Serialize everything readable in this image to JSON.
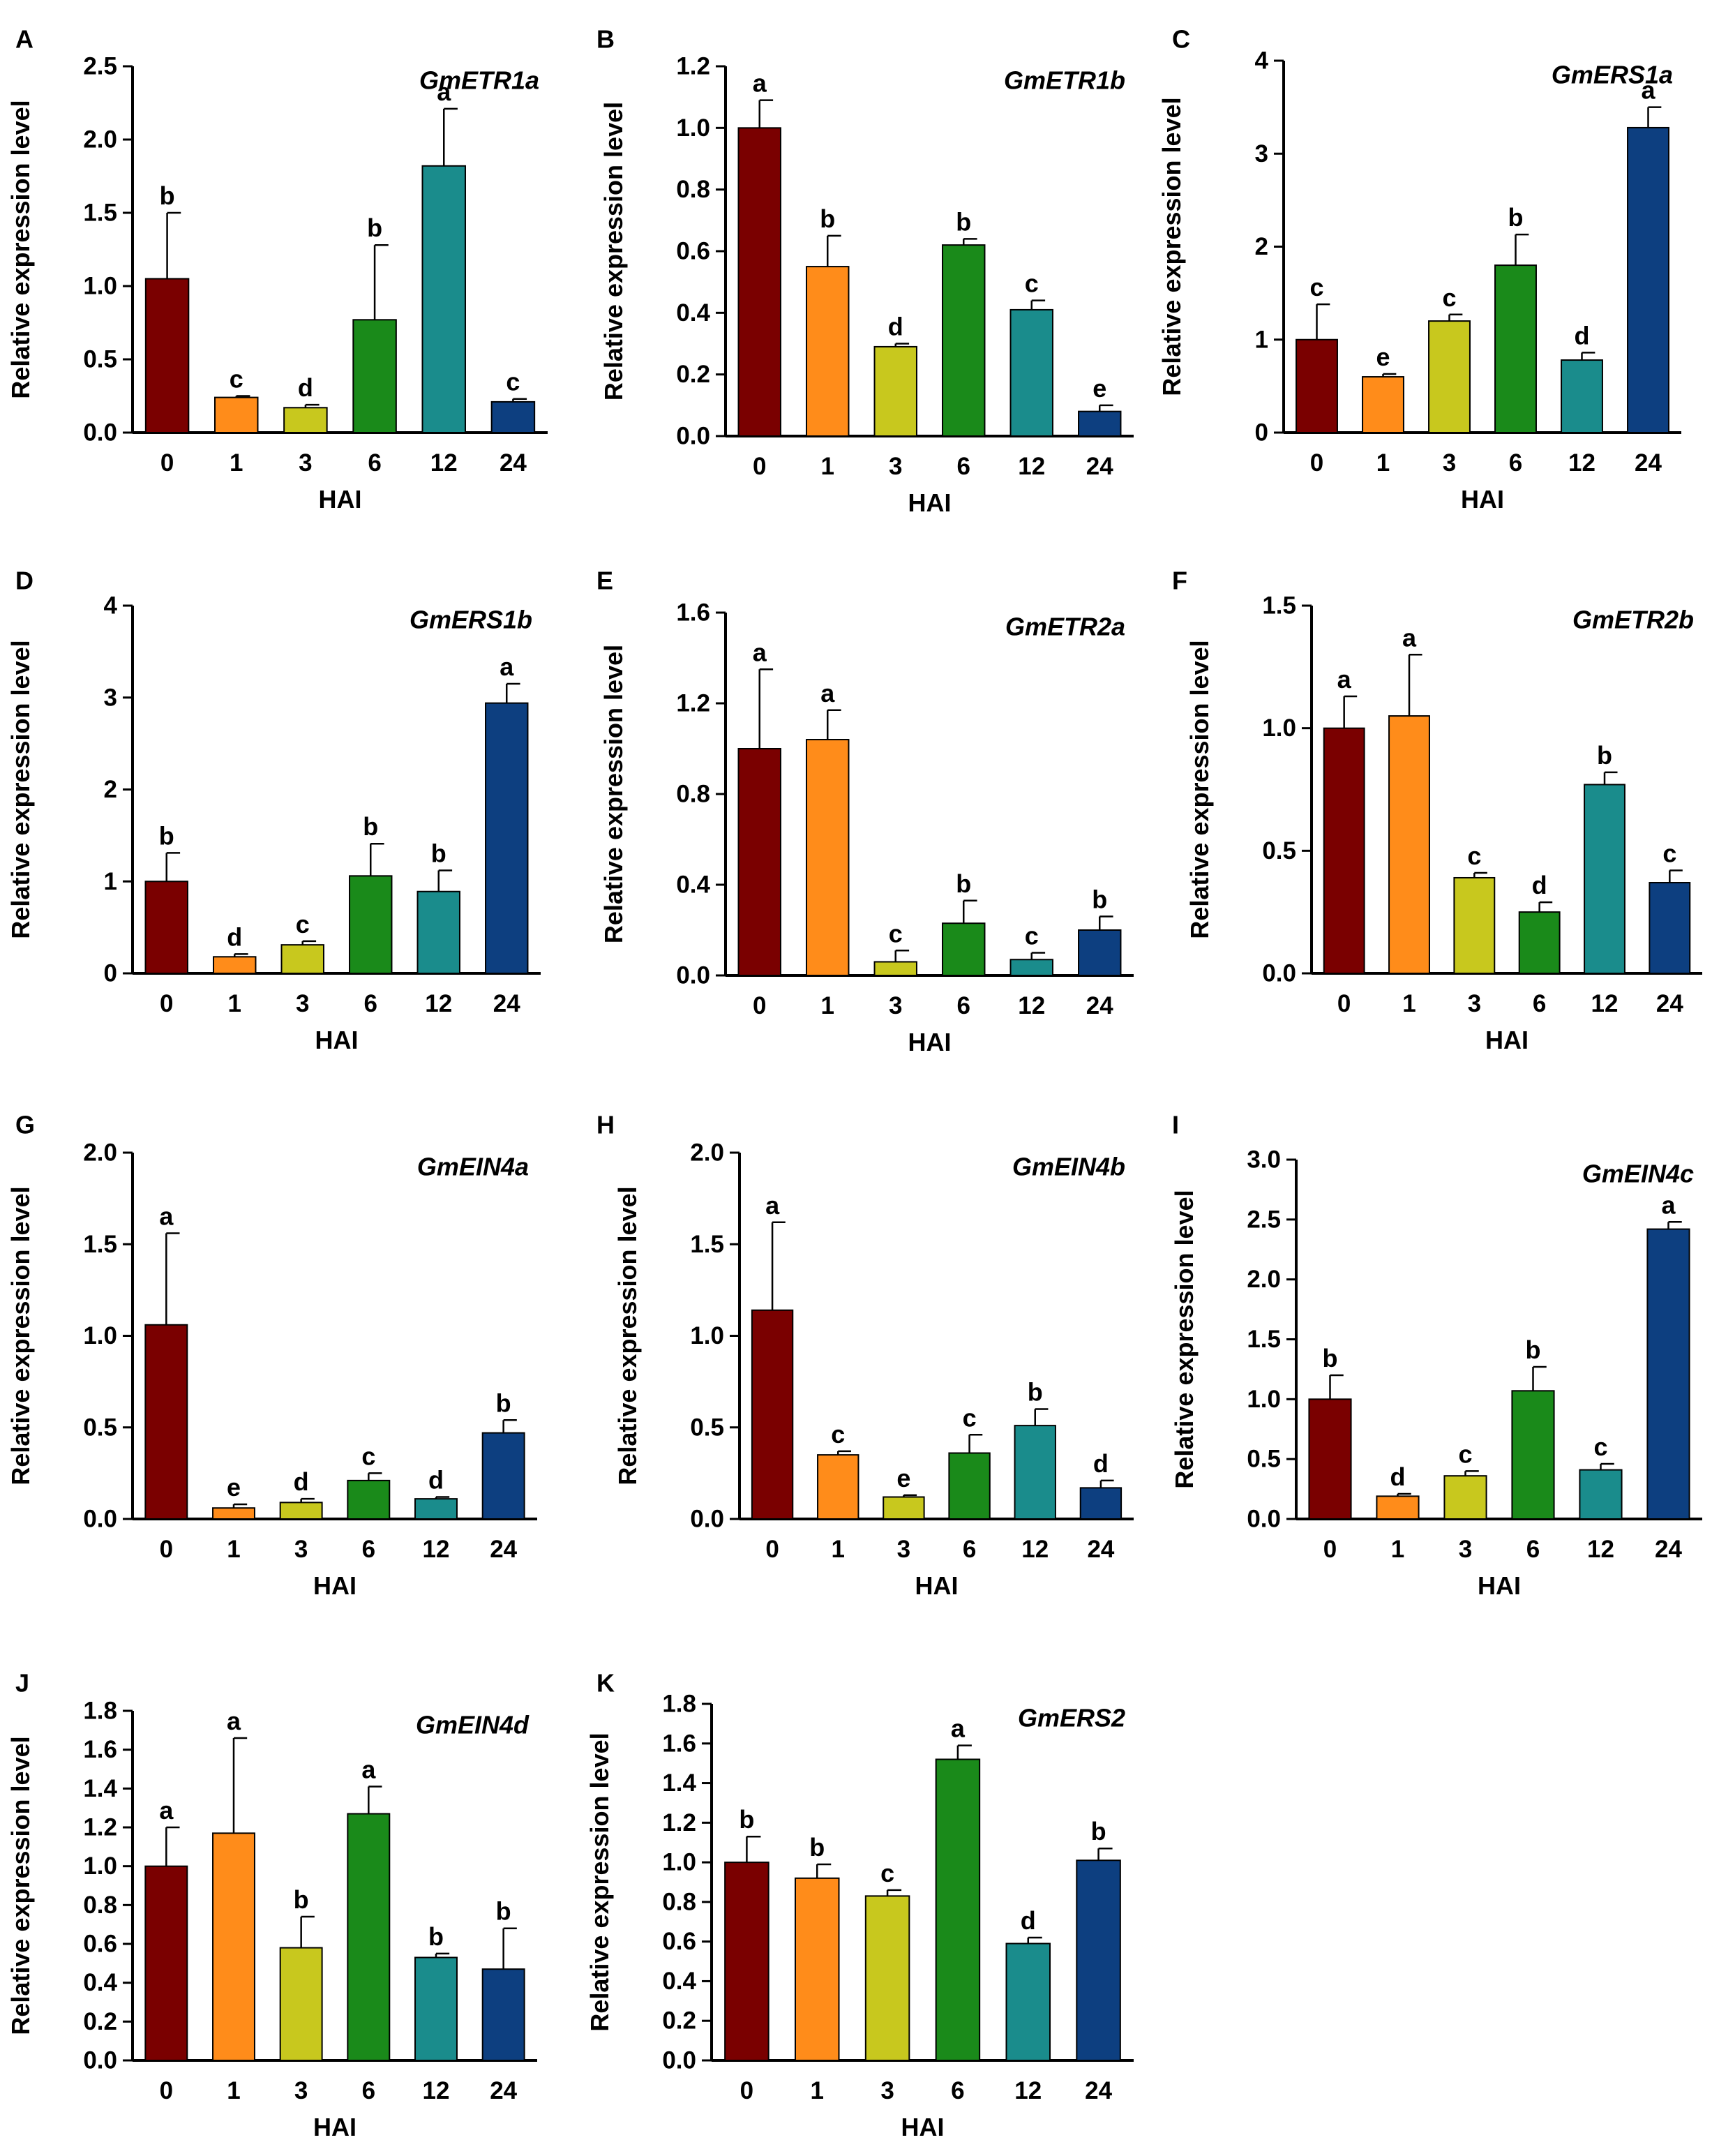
{
  "chart_data": [
    {
      "panel": "A",
      "title": "GmETR1a",
      "type": "bar",
      "ylabel": "Relative expression level",
      "xlabel": "HAI",
      "categories": [
        "0",
        "1",
        "3",
        "6",
        "12",
        "24"
      ],
      "values": [
        1.05,
        0.24,
        0.17,
        0.77,
        1.82,
        0.21
      ],
      "errors": [
        0.45,
        0.01,
        0.02,
        0.51,
        0.39,
        0.02
      ],
      "letters": [
        "b",
        "c",
        "d",
        "b",
        "a",
        "c"
      ],
      "ylim": [
        0,
        2.5
      ],
      "yticks": [
        "0.0",
        "0.5",
        "1.0",
        "1.5",
        "2.0",
        "2.5"
      ]
    },
    {
      "panel": "B",
      "title": "GmETR1b",
      "type": "bar",
      "ylabel": "Relative expression level",
      "xlabel": "HAI",
      "categories": [
        "0",
        "1",
        "3",
        "6",
        "12",
        "24"
      ],
      "values": [
        1.0,
        0.55,
        0.29,
        0.62,
        0.41,
        0.08
      ],
      "errors": [
        0.09,
        0.1,
        0.01,
        0.02,
        0.03,
        0.02
      ],
      "letters": [
        "a",
        "b",
        "d",
        "b",
        "c",
        "e"
      ],
      "ylim": [
        0,
        1.2
      ],
      "yticks": [
        "0.0",
        "0.2",
        "0.4",
        "0.6",
        "0.8",
        "1.0",
        "1.2"
      ]
    },
    {
      "panel": "C",
      "title": "GmERS1a",
      "type": "bar",
      "ylabel": "Relative expression level",
      "xlabel": "HAI",
      "categories": [
        "0",
        "1",
        "3",
        "6",
        "12",
        "24"
      ],
      "values": [
        1.0,
        0.6,
        1.2,
        1.8,
        0.78,
        3.28
      ],
      "errors": [
        0.38,
        0.03,
        0.07,
        0.33,
        0.08,
        0.22
      ],
      "letters": [
        "c",
        "e",
        "c",
        "b",
        "d",
        "a"
      ],
      "ylim": [
        0,
        4
      ],
      "yticks": [
        "0",
        "1",
        "2",
        "3",
        "4"
      ]
    },
    {
      "panel": "D",
      "title": "GmERS1b",
      "type": "bar",
      "ylabel": "Relative expression level",
      "xlabel": "HAI",
      "categories": [
        "0",
        "1",
        "3",
        "6",
        "12",
        "24"
      ],
      "values": [
        1.0,
        0.18,
        0.31,
        1.06,
        0.89,
        2.94
      ],
      "errors": [
        0.31,
        0.03,
        0.04,
        0.35,
        0.23,
        0.21
      ],
      "letters": [
        "b",
        "d",
        "c",
        "b",
        "b",
        "a"
      ],
      "ylim": [
        0,
        4
      ],
      "yticks": [
        "0",
        "1",
        "2",
        "3",
        "4"
      ]
    },
    {
      "panel": "E",
      "title": "GmETR2a",
      "type": "bar",
      "ylabel": "Relative expression level",
      "xlabel": "HAI",
      "categories": [
        "0",
        "1",
        "3",
        "6",
        "12",
        "24"
      ],
      "values": [
        1.0,
        1.04,
        0.06,
        0.23,
        0.07,
        0.2
      ],
      "errors": [
        0.35,
        0.13,
        0.05,
        0.1,
        0.03,
        0.06
      ],
      "letters": [
        "a",
        "a",
        "c",
        "b",
        "c",
        "b"
      ],
      "ylim": [
        0,
        1.6
      ],
      "yticks": [
        "0.0",
        "0.4",
        "0.8",
        "1.2",
        "1.6"
      ]
    },
    {
      "panel": "F",
      "title": "GmETR2b",
      "type": "bar",
      "ylabel": "Relative expression level",
      "xlabel": "HAI",
      "categories": [
        "0",
        "1",
        "3",
        "6",
        "12",
        "24"
      ],
      "values": [
        1.0,
        1.05,
        0.39,
        0.25,
        0.77,
        0.37
      ],
      "errors": [
        0.13,
        0.25,
        0.02,
        0.04,
        0.05,
        0.05
      ],
      "letters": [
        "a",
        "a",
        "c",
        "d",
        "b",
        "c"
      ],
      "ylim": [
        0,
        1.5
      ],
      "yticks": [
        "0.0",
        "0.5",
        "1.0",
        "1.5"
      ]
    },
    {
      "panel": "G",
      "title": "GmEIN4a",
      "type": "bar",
      "ylabel": "Relative expression level",
      "xlabel": "HAI",
      "categories": [
        "0",
        "1",
        "3",
        "6",
        "12",
        "24"
      ],
      "values": [
        1.06,
        0.06,
        0.09,
        0.21,
        0.11,
        0.47
      ],
      "errors": [
        0.5,
        0.02,
        0.02,
        0.04,
        0.01,
        0.07
      ],
      "letters": [
        "a",
        "e",
        "d",
        "c",
        "d",
        "b"
      ],
      "ylim": [
        0,
        2.0
      ],
      "yticks": [
        "0.0",
        "0.5",
        "1.0",
        "1.5",
        "2.0"
      ]
    },
    {
      "panel": "H",
      "title": "GmEIN4b",
      "type": "bar",
      "ylabel": "Relative expression level",
      "xlabel": "HAI",
      "categories": [
        "0",
        "1",
        "3",
        "6",
        "12",
        "24"
      ],
      "values": [
        1.14,
        0.35,
        0.12,
        0.36,
        0.51,
        0.17
      ],
      "errors": [
        0.48,
        0.02,
        0.01,
        0.1,
        0.09,
        0.04
      ],
      "letters": [
        "a",
        "c",
        "e",
        "c",
        "b",
        "d"
      ],
      "ylim": [
        0,
        2.0
      ],
      "yticks": [
        "0.0",
        "0.5",
        "1.0",
        "1.5",
        "2.0"
      ]
    },
    {
      "panel": "I",
      "title": "GmEIN4c",
      "type": "bar",
      "ylabel": "Relative expression level",
      "xlabel": "HAI",
      "categories": [
        "0",
        "1",
        "3",
        "6",
        "12",
        "24"
      ],
      "values": [
        1.0,
        0.19,
        0.36,
        1.07,
        0.41,
        2.42
      ],
      "errors": [
        0.2,
        0.02,
        0.04,
        0.2,
        0.05,
        0.06
      ],
      "letters": [
        "b",
        "d",
        "c",
        "b",
        "c",
        "a"
      ],
      "ylim": [
        0,
        3.0
      ],
      "yticks": [
        "0.0",
        "0.5",
        "1.0",
        "1.5",
        "2.0",
        "2.5",
        "3.0"
      ]
    },
    {
      "panel": "J",
      "title": "GmEIN4d",
      "type": "bar",
      "ylabel": "Relative expression level",
      "xlabel": "HAI",
      "categories": [
        "0",
        "1",
        "3",
        "6",
        "12",
        "24"
      ],
      "values": [
        1.0,
        1.17,
        0.58,
        1.27,
        0.53,
        0.47
      ],
      "errors": [
        0.2,
        0.49,
        0.16,
        0.14,
        0.02,
        0.21
      ],
      "letters": [
        "a",
        "a",
        "b",
        "a",
        "b",
        "b"
      ],
      "ylim": [
        0,
        1.8
      ],
      "yticks": [
        "0.0",
        "0.2",
        "0.4",
        "0.6",
        "0.8",
        "1.0",
        "1.2",
        "1.4",
        "1.6",
        "1.8"
      ]
    },
    {
      "panel": "K",
      "title": "GmERS2",
      "type": "bar",
      "ylabel": "Relative expression level",
      "xlabel": "HAI",
      "categories": [
        "0",
        "1",
        "3",
        "6",
        "12",
        "24"
      ],
      "values": [
        1.0,
        0.92,
        0.83,
        1.52,
        0.59,
        1.01
      ],
      "errors": [
        0.13,
        0.07,
        0.03,
        0.07,
        0.03,
        0.06
      ],
      "letters": [
        "b",
        "b",
        "c",
        "a",
        "d",
        "b"
      ],
      "ylim": [
        0,
        1.8
      ],
      "yticks": [
        "0.0",
        "0.2",
        "0.4",
        "0.6",
        "0.8",
        "1.0",
        "1.2",
        "1.4",
        "1.6",
        "1.8"
      ]
    }
  ],
  "colors": [
    "#7a0000",
    "#ff8c1a",
    "#c8c81e",
    "#1a8a1a",
    "#1a8c8c",
    "#0d3f80"
  ]
}
